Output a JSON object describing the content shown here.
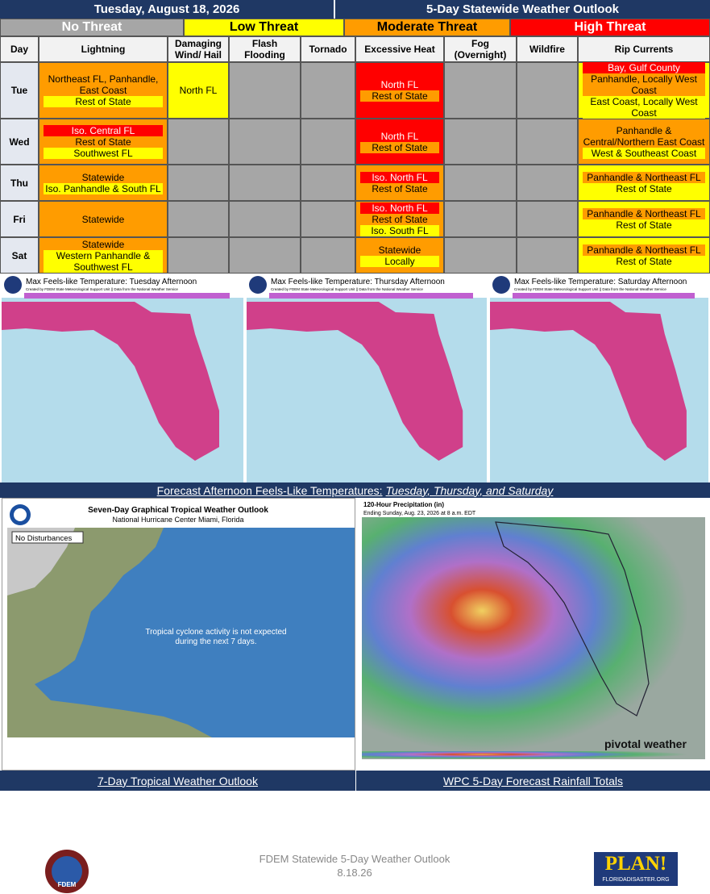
{
  "header": {
    "date": "Tuesday, August 18, 2026",
    "title": "5-Day Statewide Weather Outlook"
  },
  "legend": [
    {
      "label": "No Threat",
      "color": "#a6a6a6",
      "text_color": "#ffffff"
    },
    {
      "label": "Low Threat",
      "color": "#ffff00",
      "text_color": "#000000"
    },
    {
      "label": "Moderate Threat",
      "color": "#ff9c00",
      "text_color": "#000000"
    },
    {
      "label": "High Threat",
      "color": "#ff0000",
      "text_color": "#ffffff"
    }
  ],
  "table": {
    "columns": [
      [
        "Day"
      ],
      [
        "Lightning"
      ],
      [
        "Damaging",
        "Wind/ Hail"
      ],
      [
        "Flash",
        "Flooding"
      ],
      [
        "Tornado"
      ],
      [
        "Excessive Heat"
      ],
      [
        "Fog",
        "(Overnight)"
      ],
      [
        "Wildfire"
      ],
      [
        "Rip Currents"
      ]
    ],
    "rows": [
      {
        "day": "Tue",
        "cells": [
          {
            "level": 2,
            "lines": [
              {
                "text": "Northeast FL, Panhandle, East Coast",
                "level": 2
              },
              {
                "text": "Rest of State",
                "level": 1
              }
            ]
          },
          {
            "level": 1,
            "lines": [
              {
                "text": "North FL",
                "level": 1
              }
            ]
          },
          {
            "level": 0,
            "lines": []
          },
          {
            "level": 0,
            "lines": []
          },
          {
            "level": 3,
            "lines": [
              {
                "text": "North FL",
                "level": 3
              },
              {
                "text": "Rest of State",
                "level": 2
              }
            ]
          },
          {
            "level": 0,
            "lines": []
          },
          {
            "level": 0,
            "lines": []
          },
          {
            "level": 1,
            "lines": [
              {
                "text": "Bay, Gulf County",
                "level": 3
              },
              {
                "text": "Panhandle, Locally West Coast",
                "level": 2
              },
              {
                "text": "East Coast, Locally West Coast",
                "level": 1
              }
            ]
          }
        ]
      },
      {
        "day": "Wed",
        "cells": [
          {
            "level": 2,
            "lines": [
              {
                "text": "Iso. Central FL",
                "level": 3
              },
              {
                "text": "Rest of State",
                "level": 2
              },
              {
                "text": "Southwest FL",
                "level": 1
              }
            ]
          },
          {
            "level": 0,
            "lines": []
          },
          {
            "level": 0,
            "lines": []
          },
          {
            "level": 0,
            "lines": []
          },
          {
            "level": 3,
            "lines": [
              {
                "text": "North FL",
                "level": 3
              },
              {
                "text": "Rest of State",
                "level": 2
              }
            ]
          },
          {
            "level": 0,
            "lines": []
          },
          {
            "level": 0,
            "lines": []
          },
          {
            "level": 2,
            "lines": [
              {
                "text": "Panhandle & Central/Northern East Coast",
                "level": 2
              },
              {
                "text": "West & Southeast Coast",
                "level": 1
              }
            ]
          }
        ]
      },
      {
        "day": "Thu",
        "cells": [
          {
            "level": 2,
            "lines": [
              {
                "text": "Statewide",
                "level": 2
              },
              {
                "text": "Iso. Panhandle & South FL",
                "level": 1
              }
            ]
          },
          {
            "level": 0,
            "lines": []
          },
          {
            "level": 0,
            "lines": []
          },
          {
            "level": 0,
            "lines": []
          },
          {
            "level": 2,
            "lines": [
              {
                "text": "Iso. North FL",
                "level": 3
              },
              {
                "text": "Rest of State",
                "level": 2
              }
            ]
          },
          {
            "level": 0,
            "lines": []
          },
          {
            "level": 0,
            "lines": []
          },
          {
            "level": 1,
            "lines": [
              {
                "text": "Panhandle & Northeast FL",
                "level": 2
              },
              {
                "text": "Rest of State",
                "level": 1
              }
            ]
          }
        ]
      },
      {
        "day": "Fri",
        "cells": [
          {
            "level": 2,
            "lines": [
              {
                "text": "Statewide",
                "level": 2
              }
            ]
          },
          {
            "level": 0,
            "lines": []
          },
          {
            "level": 0,
            "lines": []
          },
          {
            "level": 0,
            "lines": []
          },
          {
            "level": 2,
            "lines": [
              {
                "text": "Iso. North FL",
                "level": 3
              },
              {
                "text": "Rest of State",
                "level": 2
              },
              {
                "text": "Iso. South FL",
                "level": 1
              }
            ]
          },
          {
            "level": 0,
            "lines": []
          },
          {
            "level": 0,
            "lines": []
          },
          {
            "level": 1,
            "lines": [
              {
                "text": "Panhandle & Northeast FL",
                "level": 2
              },
              {
                "text": "Rest of State",
                "level": 1
              }
            ]
          }
        ]
      },
      {
        "day": "Sat",
        "cells": [
          {
            "level": 2,
            "lines": [
              {
                "text": "Statewide",
                "level": 2
              },
              {
                "text": "Western Panhandle & Southwest FL",
                "level": 1
              }
            ]
          },
          {
            "level": 0,
            "lines": []
          },
          {
            "level": 0,
            "lines": []
          },
          {
            "level": 0,
            "lines": []
          },
          {
            "level": 2,
            "lines": [
              {
                "text": "Statewide",
                "level": 2
              },
              {
                "text": "Locally",
                "level": 1
              }
            ]
          },
          {
            "level": 0,
            "lines": []
          },
          {
            "level": 0,
            "lines": []
          },
          {
            "level": 1,
            "lines": [
              {
                "text": "Panhandle & Northeast FL",
                "level": 2
              },
              {
                "text": "Rest of State",
                "level": 1
              }
            ]
          }
        ]
      }
    ]
  },
  "maps": [
    {
      "title": "Max Feels-like Temperature: Tuesday Afternoon",
      "credit": "Created by FDEM State Meteorological Support Unit || Data from the National Weather Service"
    },
    {
      "title": "Max Feels-like Temperature: Thursday Afternoon",
      "credit": "Created by FDEM State Meteorological Support Unit || Data from the National Weather Service"
    },
    {
      "title": "Max Feels-like Temperature: Saturday Afternoon",
      "credit": "Created by FDEM State Meteorological Support Unit || Data from the National Weather Service"
    }
  ],
  "maps_caption": {
    "text": "Forecast Afternoon Feels-Like Temperatures: ",
    "emphasis": "Tuesday, Thursday, and Saturday"
  },
  "tropical": {
    "title": "Seven-Day Graphical Tropical Weather Outlook",
    "subtitle": "National Hurricane Center  Miami, Florida",
    "status": "No Disturbances",
    "message": "Tropical cyclone activity is not expected during the next 7 days.",
    "caption": "7-Day Tropical Weather Outlook"
  },
  "rainfall": {
    "title": "120-Hour Precipitation (in)",
    "subtitle": "Ending Sunday, Aug. 23, 2026 at 8 a.m. EDT",
    "brand": "pivotal weather",
    "caption": "WPC 5-Day Forecast Rainfall Totals"
  },
  "footer": {
    "title": "FDEM Statewide 5-Day Weather Outlook",
    "date": "8.18.26",
    "left_logo": "FDEM",
    "right_logo": "PLAN!",
    "right_logo_url": "FLORIDADISASTER.ORG"
  }
}
